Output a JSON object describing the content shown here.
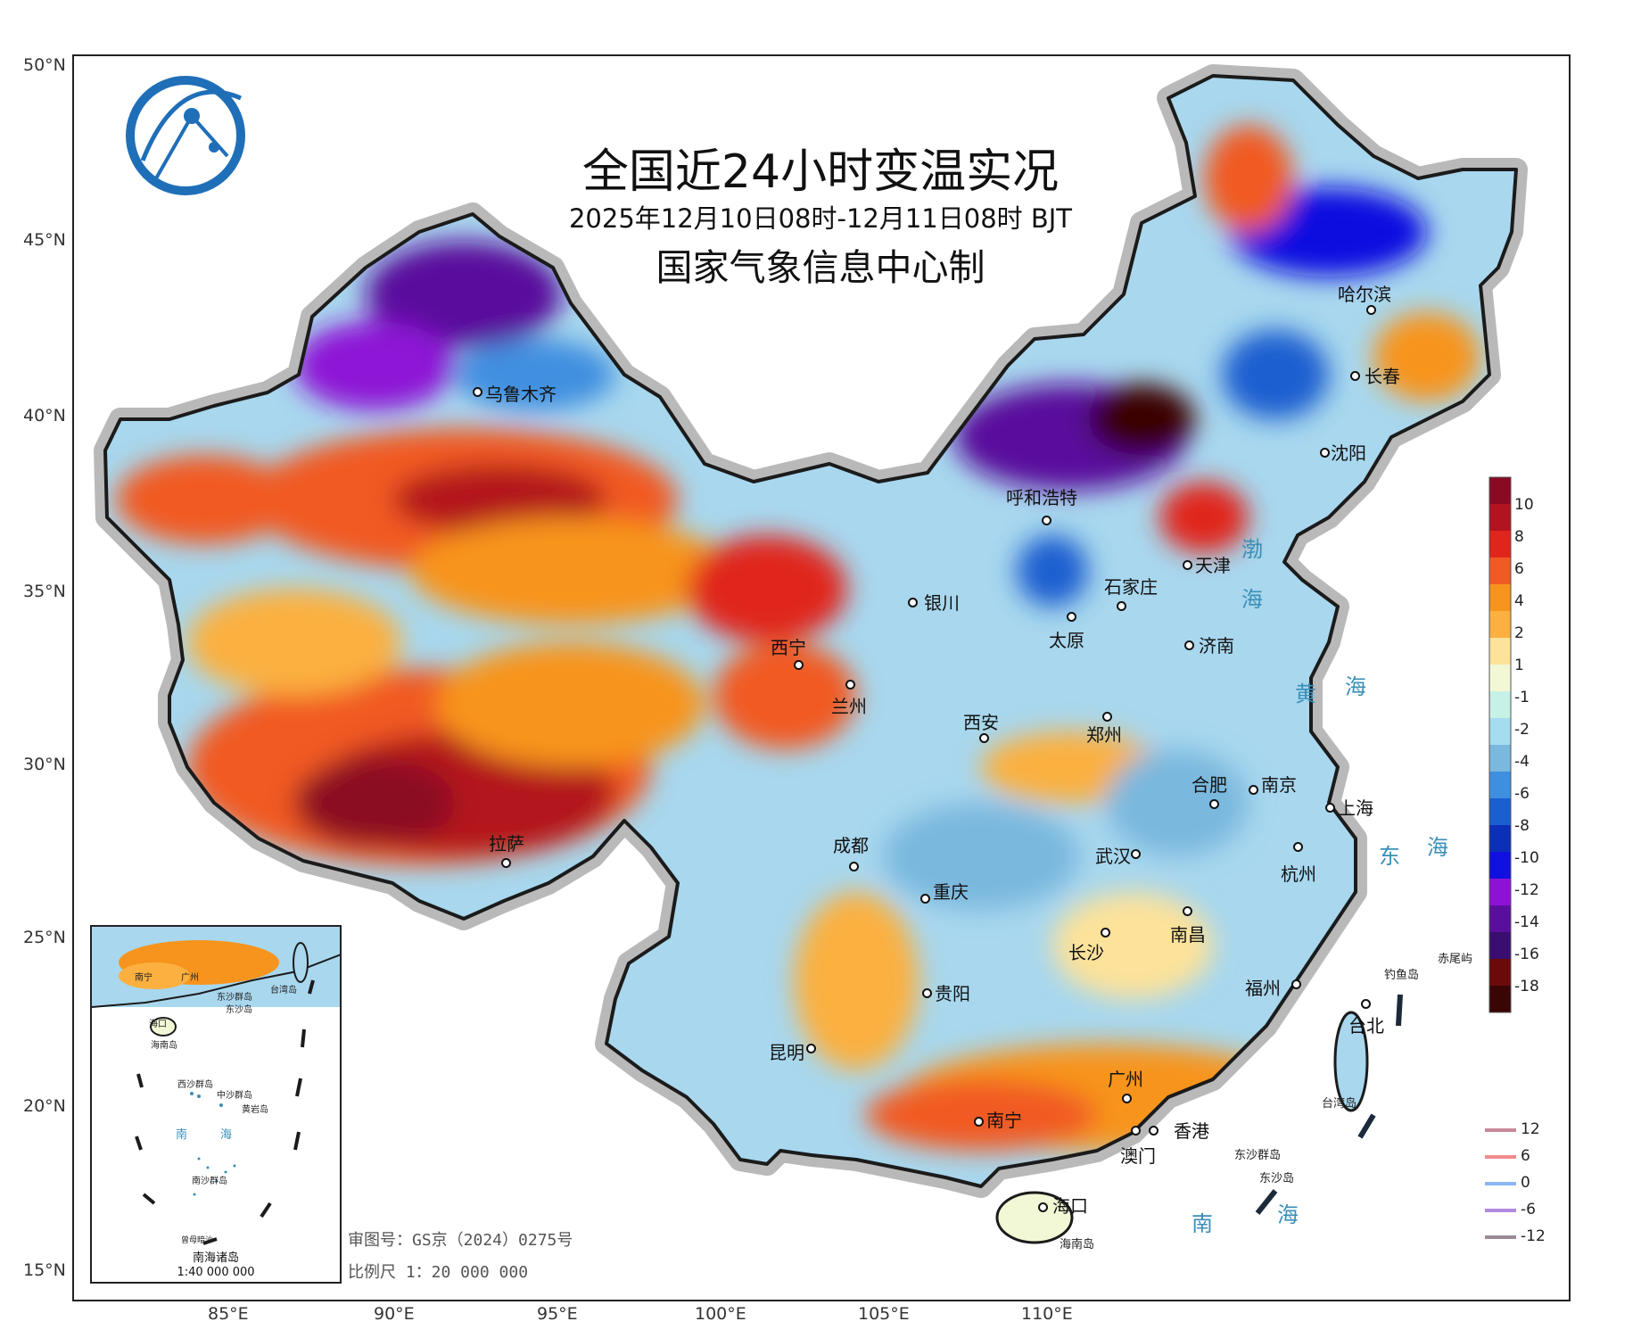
{
  "title": "全国近24小时变温实况",
  "subtitle": "2025年12月10日08时-12月11日08时 BJT",
  "producer": "国家气象信息中心制",
  "lat_labels": [
    "50°N",
    "45°N",
    "40°N",
    "35°N",
    "30°N",
    "25°N",
    "20°N",
    "15°N"
  ],
  "lon_labels": [
    "85°E",
    "90°E",
    "95°E",
    "100°E",
    "105°E",
    "110°E"
  ],
  "cities": [
    {
      "name": "哈尔滨"
    },
    {
      "name": "长春"
    },
    {
      "name": "沈阳"
    },
    {
      "name": "乌鲁木齐"
    },
    {
      "name": "呼和浩特"
    },
    {
      "name": "天津"
    },
    {
      "name": "石家庄"
    },
    {
      "name": "银川"
    },
    {
      "name": "太原"
    },
    {
      "name": "济南"
    },
    {
      "name": "西宁"
    },
    {
      "name": "兰州"
    },
    {
      "name": "西安"
    },
    {
      "name": "郑州"
    },
    {
      "name": "合肥"
    },
    {
      "name": "南京"
    },
    {
      "name": "上海"
    },
    {
      "name": "拉萨"
    },
    {
      "name": "成都"
    },
    {
      "name": "武汉"
    },
    {
      "name": "杭州"
    },
    {
      "name": "重庆"
    },
    {
      "name": "南昌"
    },
    {
      "name": "长沙"
    },
    {
      "name": "贵阳"
    },
    {
      "name": "福州"
    },
    {
      "name": "台北"
    },
    {
      "name": "昆明"
    },
    {
      "name": "广州"
    },
    {
      "name": "南宁"
    },
    {
      "name": "香港"
    },
    {
      "name": "澳门"
    },
    {
      "name": "海口"
    }
  ],
  "sea_labels": [
    "渤",
    "海",
    "黄",
    "海",
    "东",
    "海",
    "南",
    "海"
  ],
  "small_labels": [
    "赤尾屿",
    "钓鱼岛",
    "台湾岛",
    "东沙群岛",
    "东沙岛",
    "海南岛"
  ],
  "colorbar": {
    "labels": [
      "10",
      "8",
      "6",
      "4",
      "2",
      "1",
      "-1",
      "-2",
      "-4",
      "-6",
      "-8",
      "-10",
      "-12",
      "-14",
      "-16",
      "-18"
    ],
    "colors": [
      "#8b0a23",
      "#b3121f",
      "#e0251c",
      "#f15a24",
      "#f7941d",
      "#fbb040",
      "#fde29a",
      "#f2f7d5",
      "#c7f0e6",
      "#a5dcef",
      "#7ab8de",
      "#3f8fe0",
      "#1a5fd0",
      "#0b2fb8",
      "#1010e0",
      "#8e12d6",
      "#5a0f9c",
      "#3a0e70",
      "#6b0a0a",
      "#3a0505"
    ]
  },
  "line_legend": {
    "items": [
      {
        "label": "12",
        "color": "#c98a9a"
      },
      {
        "label": "6",
        "color": "#f28a8a"
      },
      {
        "label": "0",
        "color": "#8ab8f2"
      },
      {
        "label": "-6",
        "color": "#b08ae0"
      },
      {
        "label": "-12",
        "color": "#9a8a96"
      }
    ]
  },
  "inset": {
    "title": "南海诸岛",
    "scale": "1:40 000 000",
    "labels": [
      "南宁",
      "广州",
      "台湾岛",
      "海口",
      "海南岛",
      "东沙群岛",
      "东沙岛",
      "西沙群岛",
      "中沙群岛",
      "黄岩岛",
      "南",
      "海",
      "南沙群岛",
      "曾母暗沙"
    ]
  },
  "review_no": "审图号：GS京（2024）0275号",
  "scale": "比例尺 1：20 000 000"
}
